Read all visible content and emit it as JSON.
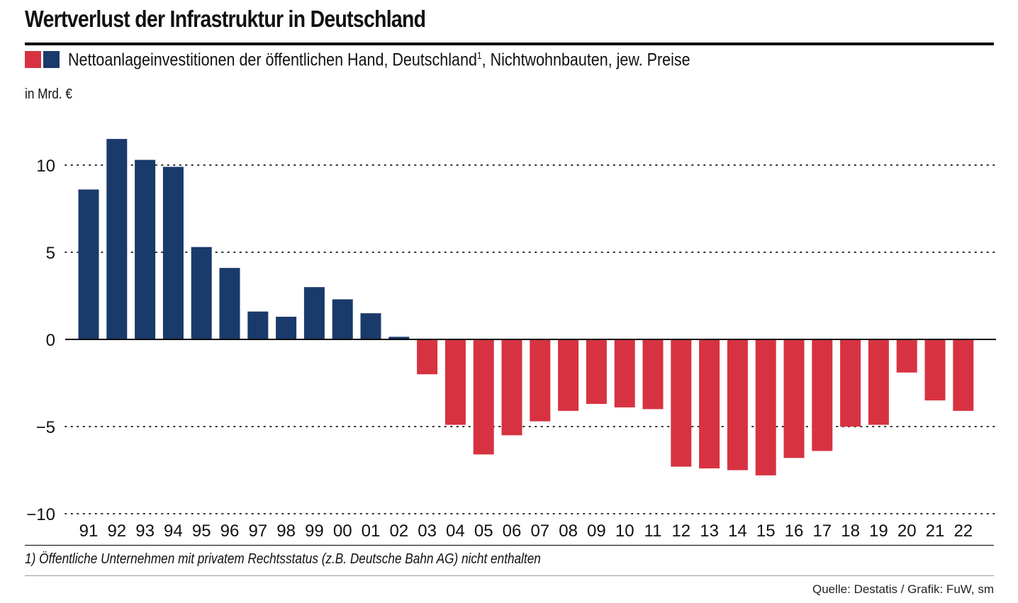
{
  "title": "Wertverlust der Infrastruktur in Deutschland",
  "legend": {
    "text_main": "Nettoanlageinvestitionen der öffentlichen Hand, Deutschland",
    "text_sup": "1",
    "text_rest": ", Nichtwohnbauten, jew. Preise"
  },
  "unit_label": "in Mrd. €",
  "footnote": "1) Öffentliche Unternehmen mit privatem Rechtsstatus (z.B. Deutsche Bahn AG) nicht enthalten",
  "source": "Quelle: Destatis / Grafik: FuW, sm",
  "colors": {
    "positive": "#1a3a6b",
    "negative": "#d73242",
    "axis": "#000000",
    "grid": "#333333"
  },
  "chart_data": {
    "type": "bar",
    "title": "Wertverlust der Infrastruktur in Deutschland",
    "ylabel": "in Mrd. €",
    "xlabel": "",
    "ylim": [
      -10,
      12
    ],
    "yticks": [
      10,
      5,
      0,
      -5,
      -10
    ],
    "ytick_labels": [
      "10",
      "5",
      "0",
      "−5",
      "−10"
    ],
    "grid": "horizontal dotted",
    "categories": [
      "91",
      "92",
      "93",
      "94",
      "95",
      "96",
      "97",
      "98",
      "99",
      "00",
      "01",
      "02",
      "03",
      "04",
      "05",
      "06",
      "07",
      "08",
      "09",
      "10",
      "11",
      "12",
      "13",
      "14",
      "15",
      "16",
      "17",
      "18",
      "19",
      "20",
      "21",
      "22"
    ],
    "values": [
      8.6,
      11.5,
      10.3,
      9.9,
      5.3,
      4.1,
      1.6,
      1.3,
      3.0,
      2.3,
      1.5,
      0.15,
      -2.0,
      -4.9,
      -6.6,
      -5.5,
      -4.7,
      -4.1,
      -3.7,
      -3.9,
      -4.0,
      -7.3,
      -7.4,
      -7.5,
      -7.8,
      -6.8,
      -6.4,
      -5.0,
      -4.9,
      -1.9,
      -3.5,
      -4.1
    ]
  }
}
